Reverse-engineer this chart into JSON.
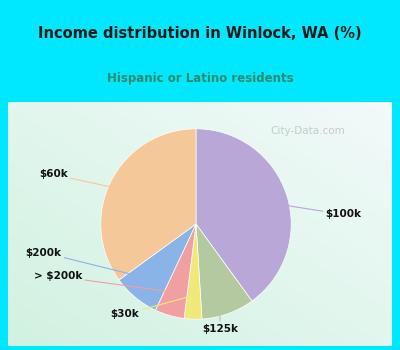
{
  "title": "Income distribution in Winlock, WA (%)",
  "subtitle": "Hispanic or Latino residents",
  "labels": [
    "$100k",
    "$125k",
    "$30k",
    "> $200k",
    "$200k",
    "$60k"
  ],
  "sizes": [
    40,
    9,
    3,
    5,
    8,
    35
  ],
  "colors": [
    "#b8a8d8",
    "#b5c9a0",
    "#f0e87a",
    "#f0a0a0",
    "#8ab4e8",
    "#f5c89a"
  ],
  "title_color": "#1a1a1a",
  "subtitle_color": "#2e8b6e",
  "startangle": 90,
  "watermark": "City-Data.com",
  "bg_cyan": "#00e8ff",
  "bg_chart_gradient": true
}
